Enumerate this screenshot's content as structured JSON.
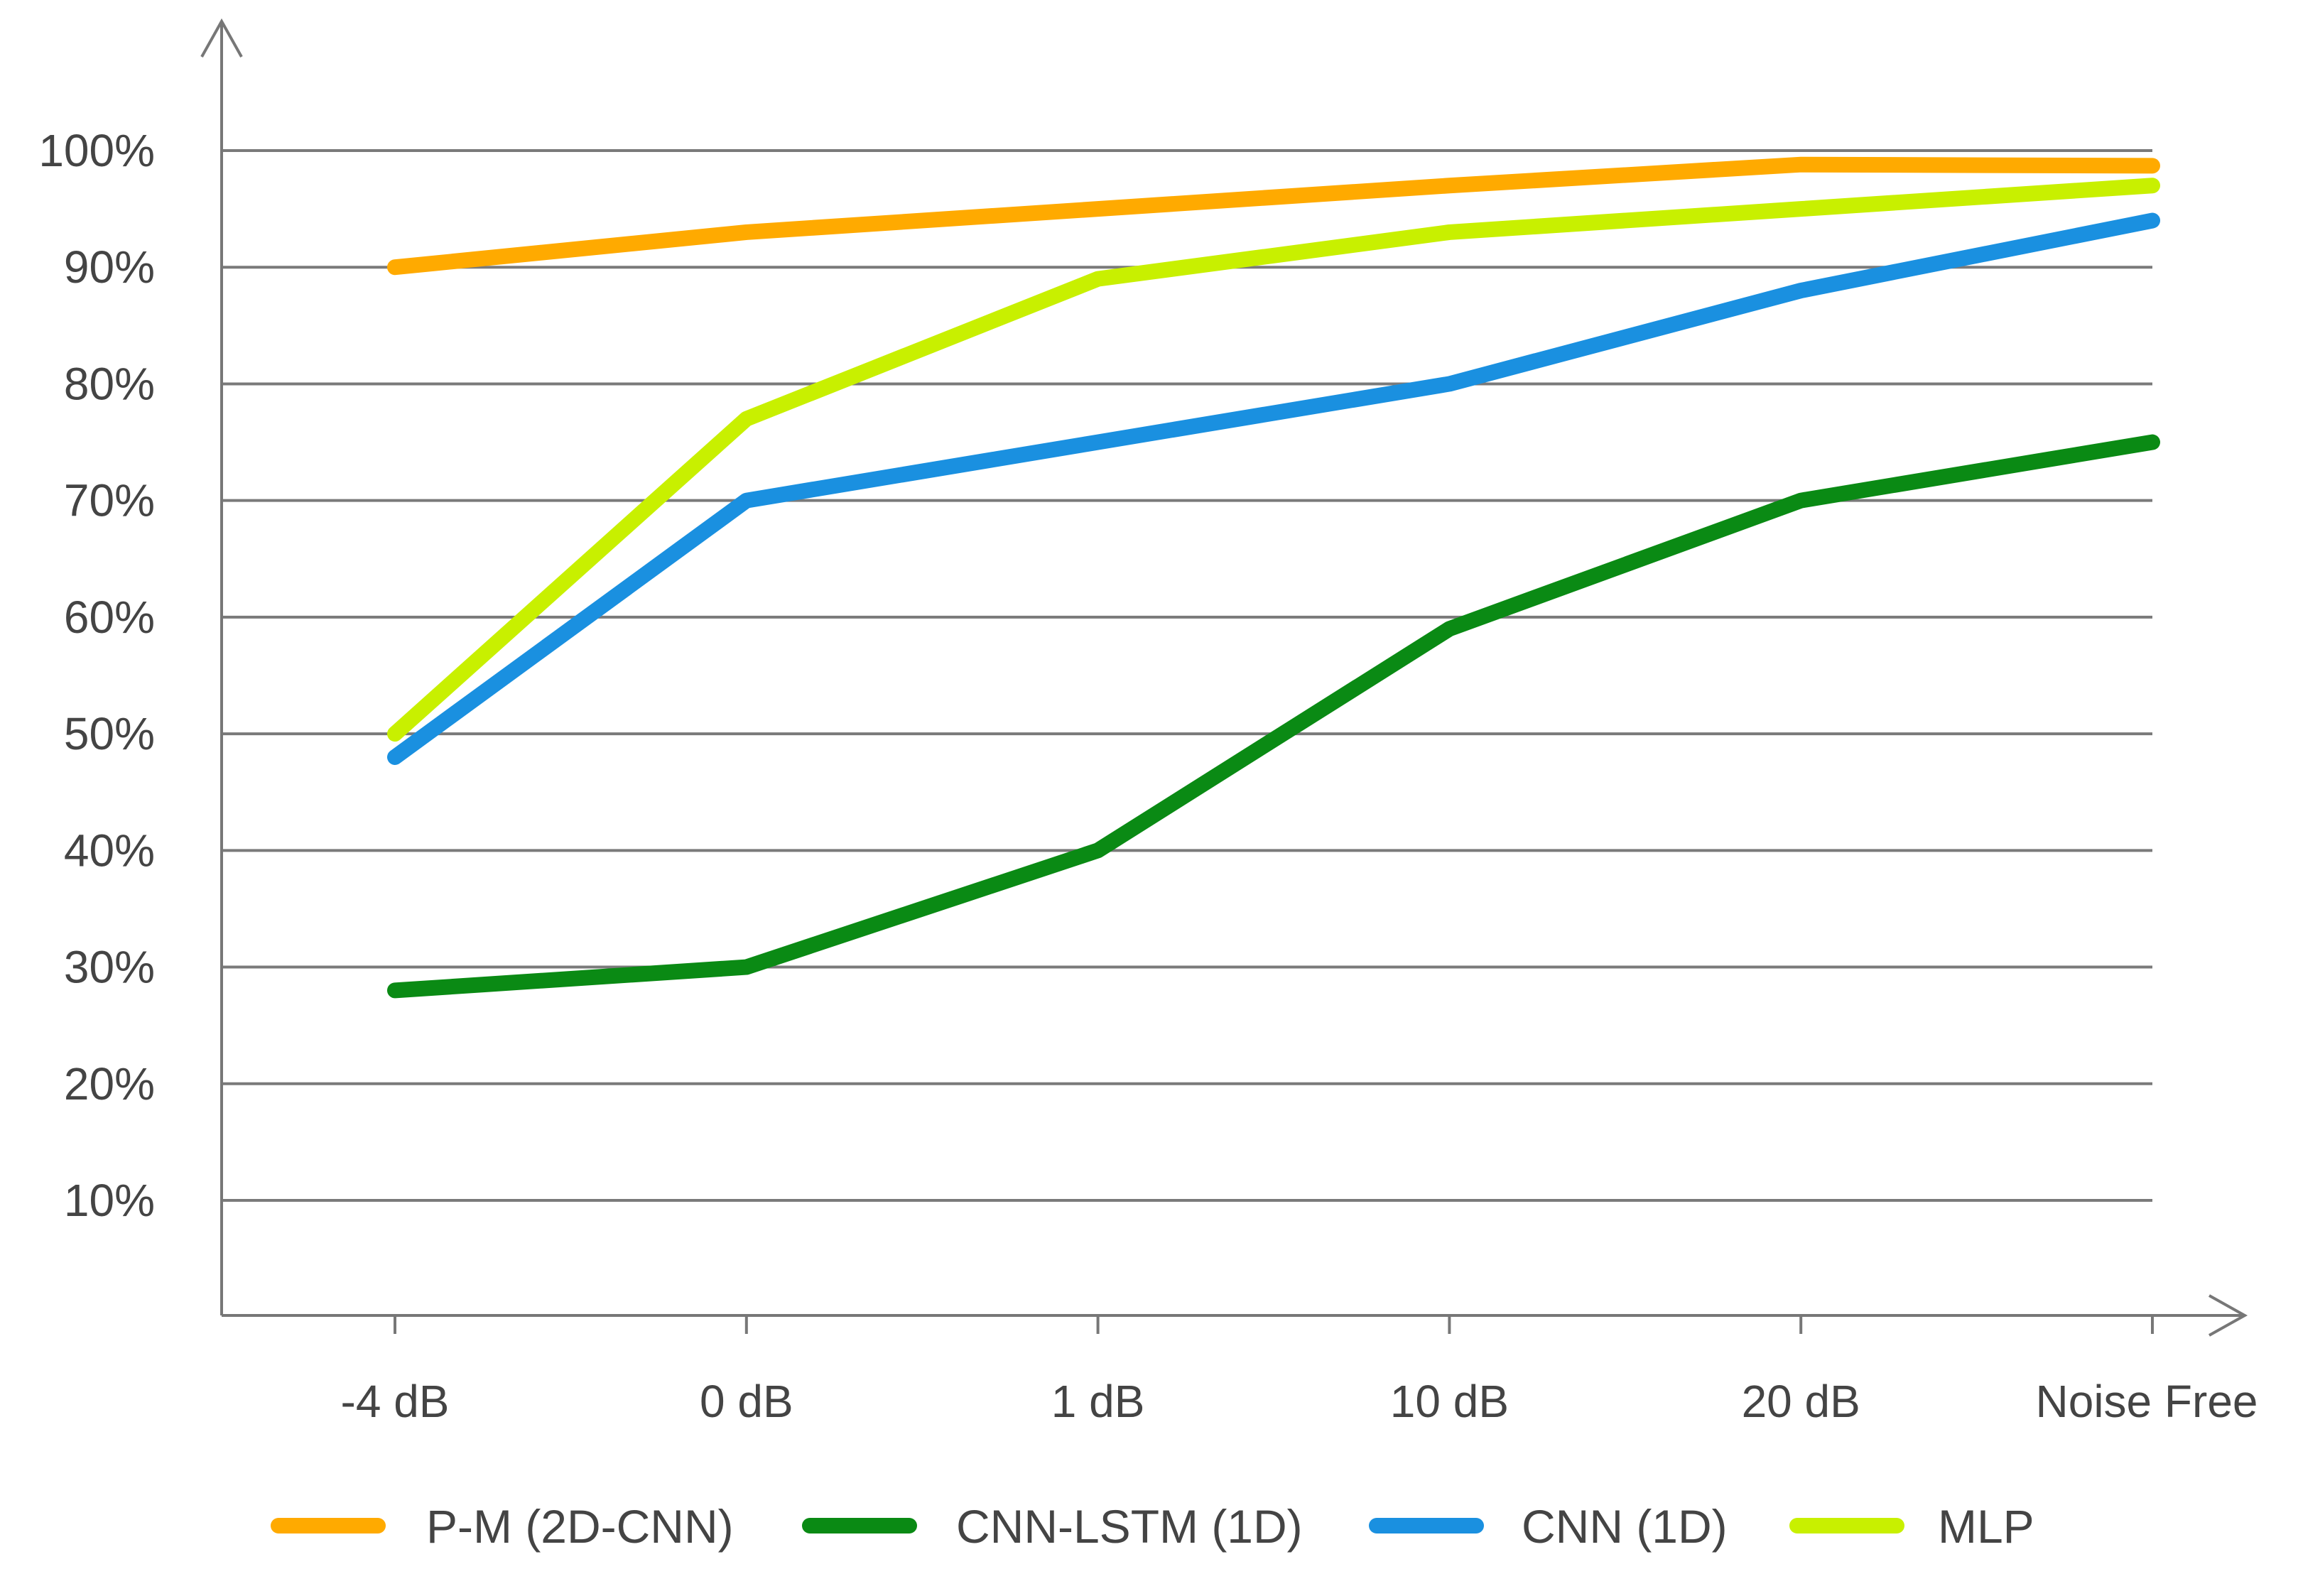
{
  "chart_data": {
    "type": "line",
    "title": "",
    "xlabel": "",
    "ylabel": "",
    "categories": [
      "-4 dB",
      "0 dB",
      "1 dB",
      "10 dB",
      "20 dB",
      "Noise Free"
    ],
    "y_ticks": [
      "10%",
      "20%",
      "30%",
      "40%",
      "50%",
      "60%",
      "70%",
      "80%",
      "90%",
      "100%"
    ],
    "ylim": [
      0,
      110
    ],
    "grid": true,
    "legend_position": "bottom",
    "series": [
      {
        "name": "P-M (2D-CNN)",
        "color": "#FFAA00",
        "values": [
          90,
          93,
          95,
          97,
          98.8,
          98.7
        ]
      },
      {
        "name": "CNN-LSTM (1D)",
        "color": "#0A8A14",
        "values": [
          28,
          30,
          40,
          59,
          70,
          75
        ]
      },
      {
        "name": "CNN (1D)",
        "color": "#1A90E0",
        "values": [
          48,
          70,
          75,
          80,
          88,
          94
        ]
      },
      {
        "name": "MLP",
        "color": "#C8F000",
        "values": [
          50,
          77,
          89,
          93,
          95,
          97
        ]
      }
    ]
  }
}
